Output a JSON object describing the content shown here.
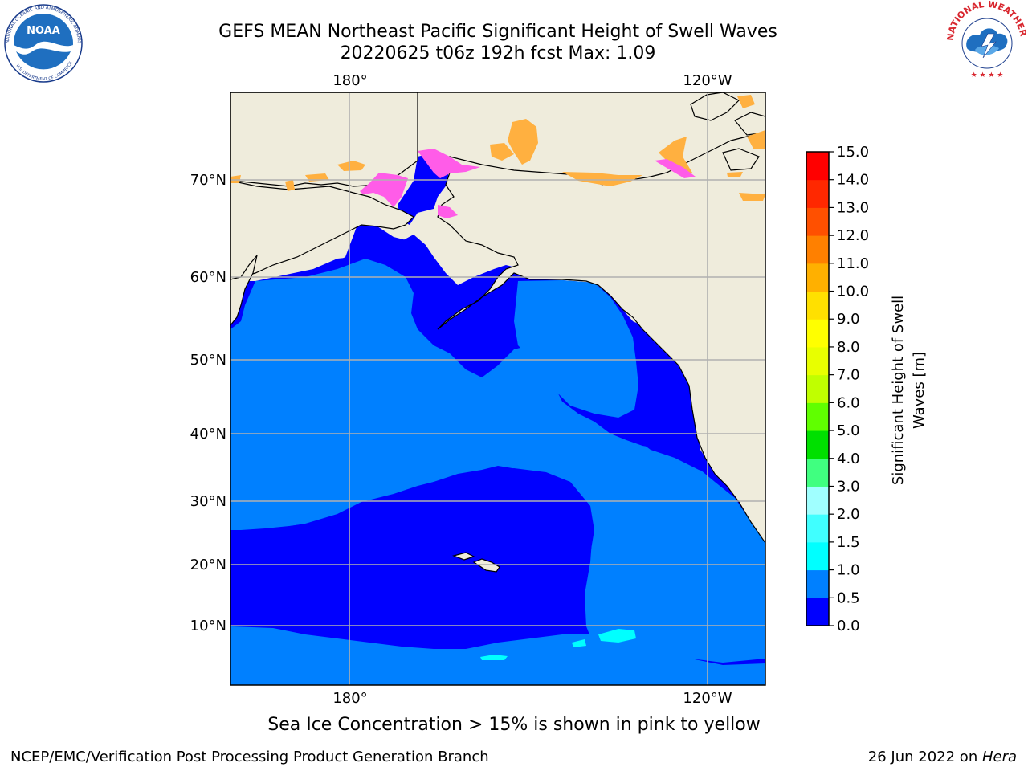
{
  "header": {
    "title_line1": "GEFS MEAN Northeast Pacific Significant Height of Swell Waves",
    "title_line2": "20220625 t06z 192h fcst   Max: 1.09"
  },
  "logos": {
    "left": "NOAA",
    "left_ring": "NATIONAL OCEANIC AND ATMOSPHERIC ADMINISTRATION",
    "left_ring_bottom": "U.S. DEPARTMENT OF COMMERCE",
    "right_ring": "NATIONAL WEATHER SERVICE"
  },
  "map": {
    "lon_labels": [
      "180°",
      "120°W"
    ],
    "lat_labels": [
      "70°N",
      "60°N",
      "50°N",
      "40°N",
      "30°N",
      "20°N",
      "10°N"
    ],
    "colors": {
      "land": "#efecdc",
      "ocean_low": "#0000ff",
      "ocean_mid": "#0080ff",
      "grid": "#b0b0b0",
      "ice_pink": "#ff5ce8",
      "ice_orange": "#ffb040"
    }
  },
  "colorbar": {
    "label_line1": "Significant Height of Swell",
    "label_line2": "Waves [m]",
    "ticks": [
      "0.0",
      "0.5",
      "1.0",
      "1.5",
      "2.0",
      "3.0",
      "4.0",
      "5.0",
      "6.0",
      "7.0",
      "8.0",
      "9.0",
      "10.0",
      "11.0",
      "12.0",
      "13.0",
      "14.0",
      "15.0"
    ],
    "colors": [
      "#0000ff",
      "#0080ff",
      "#00ffff",
      "#40ffff",
      "#a0ffff",
      "#40ff80",
      "#00e000",
      "#60ff00",
      "#c0ff00",
      "#e8ff00",
      "#ffff00",
      "#ffe000",
      "#ffb000",
      "#ff8000",
      "#ff5000",
      "#ff2800",
      "#ff0000"
    ]
  },
  "ice_note": "Sea Ice Concentration > 15% is shown in pink to yellow",
  "footer": {
    "left": "NCEP/EMC/Verification Post Processing Product Generation Branch",
    "right_prefix": "26 Jun 2022 on ",
    "right_machine": "Hera"
  }
}
